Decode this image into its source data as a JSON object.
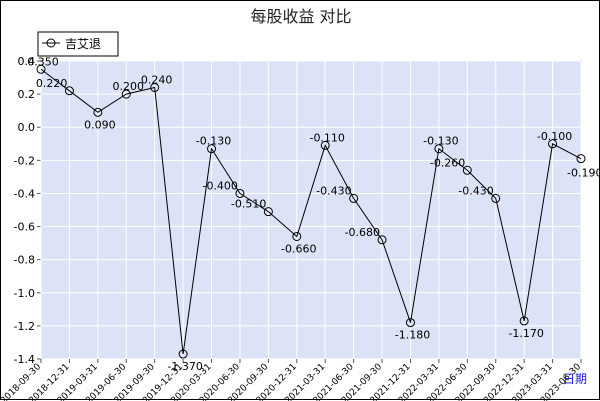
{
  "chart_data": {
    "type": "line",
    "title": "每股收益 对比",
    "x_unit_label": "日期",
    "legend_position": "top-left",
    "grid": true,
    "ylim": [
      -1.4,
      0.4
    ],
    "yticks": [
      0.4,
      0.2,
      0.0,
      -0.2,
      -0.4,
      -0.6,
      -0.8,
      -1.0,
      -1.2,
      -1.4
    ],
    "ytick_labels": [
      "0.4",
      "0.2",
      "0.0",
      "-0.2",
      "-0.4",
      "-0.6",
      "-0.8",
      "-1.0",
      "-1.2",
      "-1.4"
    ],
    "categories": [
      "2018-09-30",
      "2018-12-31",
      "2019-03-31",
      "2019-06-30",
      "2019-09-30",
      "2019-12-31",
      "2020-03-31",
      "2020-06-30",
      "2020-09-30",
      "2020-12-31",
      "2021-03-31",
      "2021-06-30",
      "2021-09-30",
      "2021-12-31",
      "2022-03-31",
      "2022-06-30",
      "2022-09-30",
      "2022-12-31",
      "2023-03-31",
      "2023-06-30"
    ],
    "series": [
      {
        "name": "吉艾退",
        "color": "#000000",
        "values": [
          0.35,
          0.22,
          0.09,
          0.2,
          0.24,
          -1.37,
          -0.13,
          -0.4,
          -0.51,
          -0.66,
          -0.11,
          -0.43,
          -0.68,
          -1.18,
          -0.13,
          -0.26,
          -0.43,
          -1.17,
          -0.1,
          -0.19
        ],
        "labels": [
          "0.350",
          "0.220",
          "0.090",
          "0.200",
          "0.240",
          "-1.370",
          "-0.130",
          "-0.400",
          "-0.510",
          "-0.660",
          "-0.110",
          "-0.430",
          "-0.680",
          "-1.180",
          "-0.130",
          "-0.260",
          "-0.430",
          "-1.170",
          "-0.100",
          "-0.190"
        ]
      }
    ],
    "plot_background": "#dde3f7",
    "grid_color": "#ffffff"
  }
}
